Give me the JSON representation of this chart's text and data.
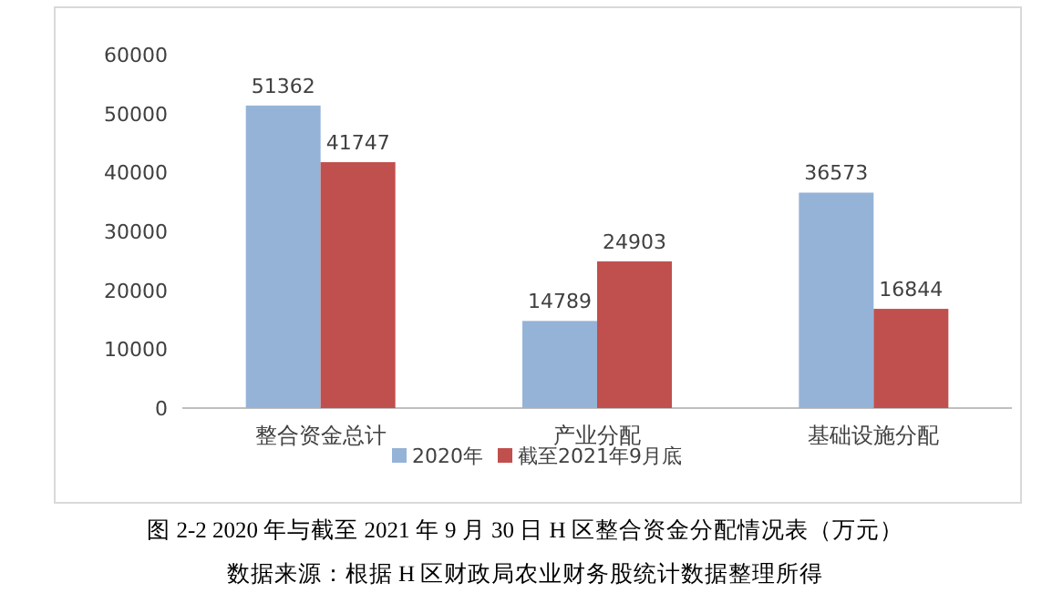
{
  "chart_data": {
    "type": "bar",
    "categories": [
      "整合资金总计",
      "产业分配",
      "基础设施分配"
    ],
    "series": [
      {
        "name": "2020年",
        "color": "#95b3d7",
        "values": [
          51362,
          14789,
          36573
        ]
      },
      {
        "name": "截至2021年9月底",
        "color": "#c0504d",
        "values": [
          41747,
          24903,
          16844
        ]
      }
    ],
    "ylim": [
      0,
      60000
    ],
    "yticks": [
      0,
      10000,
      20000,
      30000,
      40000,
      50000,
      60000
    ],
    "data_labels": true,
    "legend": "bottom",
    "annotations": [
      "图 2-2  2020 年与截至 2021 年 9 月 30 日 H 区整合资金分配情况表（万元）",
      "数据来源：根据 H 区财政局农业财务股统计数据整理所得"
    ]
  }
}
